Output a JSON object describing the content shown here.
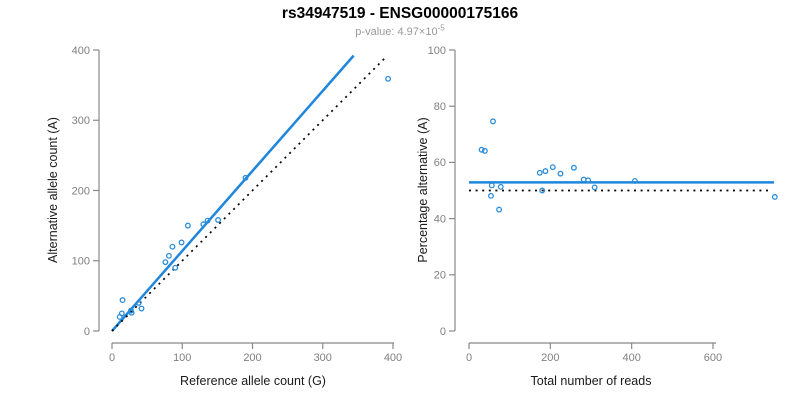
{
  "page": {
    "title": "rs34947519 - ENSG00000175166",
    "subtitle_prefix": "p-value: 4.97×10",
    "subtitle_exponent": "-5"
  },
  "colors": {
    "accent_blue": "#1e86dc",
    "point_blue": "#2b8cd8",
    "axis_gray": "#888888",
    "tick_label_gray": "#808080",
    "axis_title_dark": "#1a1a1a",
    "subtitle_gray": "#9a9a9a",
    "dotted_black": "#000000"
  },
  "chart_data": [
    {
      "type": "scatter",
      "panel": "left",
      "xlabel": "Reference allele count (G)",
      "ylabel": "Alternative allele count (A)",
      "xlim": [
        0,
        400
      ],
      "ylim": [
        0,
        400
      ],
      "xticks": [
        0,
        100,
        200,
        300,
        400
      ],
      "yticks": [
        0,
        100,
        200,
        300,
        400
      ],
      "grid": false,
      "points": [
        [
          15,
          44
        ],
        [
          11,
          20
        ],
        [
          14,
          25
        ],
        [
          27,
          29
        ],
        [
          38,
          40
        ],
        [
          28,
          26
        ],
        [
          42,
          32
        ],
        [
          76,
          98
        ],
        [
          81,
          107
        ],
        [
          86,
          120
        ],
        [
          99,
          126
        ],
        [
          108,
          150
        ],
        [
          90,
          90
        ],
        [
          130,
          152
        ],
        [
          136,
          157
        ],
        [
          151,
          158
        ],
        [
          190,
          218
        ],
        [
          393,
          359
        ]
      ],
      "lines": [
        {
          "name": "regression-line",
          "style": "solid",
          "color_key": "accent_blue",
          "from": [
            0,
            0
          ],
          "to": [
            344,
            392
          ]
        },
        {
          "name": "identity-line",
          "style": "dotted",
          "color_key": "dotted_black",
          "from": [
            0,
            0
          ],
          "to": [
            392,
            392
          ]
        }
      ]
    },
    {
      "type": "scatter",
      "panel": "right",
      "xlabel": "Total number of reads",
      "ylabel": "Percentage alternative (A)",
      "xlim": [
        0,
        750
      ],
      "ylim": [
        0,
        100
      ],
      "xticks": [
        0,
        200,
        400,
        600
      ],
      "yticks": [
        0,
        20,
        40,
        60,
        80,
        100
      ],
      "grid": false,
      "points": [
        [
          59,
          74.6
        ],
        [
          31,
          64.5
        ],
        [
          39,
          64.1
        ],
        [
          56,
          51.8
        ],
        [
          78,
          51.3
        ],
        [
          54,
          48.1
        ],
        [
          74,
          43.2
        ],
        [
          174,
          56.3
        ],
        [
          188,
          56.9
        ],
        [
          206,
          58.3
        ],
        [
          225,
          56.0
        ],
        [
          258,
          58.1
        ],
        [
          180,
          50.0
        ],
        [
          282,
          53.9
        ],
        [
          293,
          53.6
        ],
        [
          309,
          51.1
        ],
        [
          408,
          53.4
        ],
        [
          752,
          47.7
        ]
      ],
      "lines": [
        {
          "name": "mean-percentage-line",
          "style": "solid",
          "color_key": "accent_blue",
          "from": [
            0,
            52.9
          ],
          "to": [
            750,
            52.9
          ]
        },
        {
          "name": "fifty-percent-line",
          "style": "dotted",
          "color_key": "dotted_black",
          "from": [
            0,
            50
          ],
          "to": [
            738,
            50
          ]
        }
      ]
    }
  ]
}
